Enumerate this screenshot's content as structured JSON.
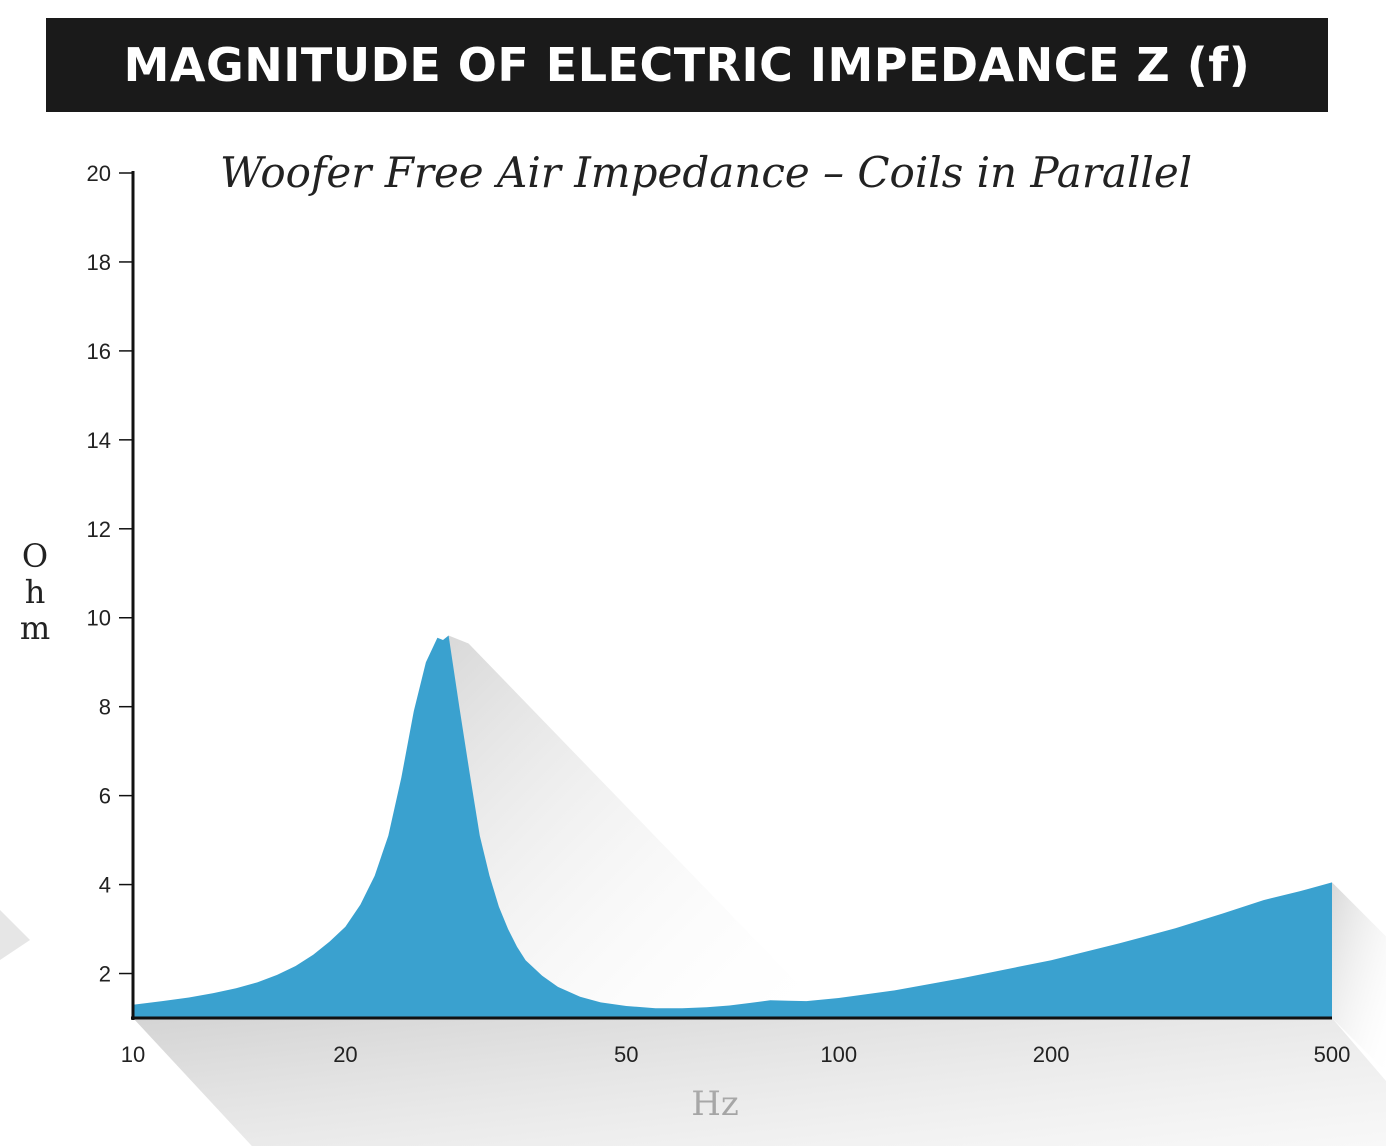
{
  "banner": {
    "title": "MAGNITUDE OF ELECTRIC IMPEDANCE Z (f)"
  },
  "colors": {
    "banner_bg": "#1a1a1a",
    "fill": "#3aa1cf",
    "shadow": "#d9d9d9"
  },
  "chart_data": {
    "type": "area",
    "title": "Woofer Free Air Impedance – Coils in Parallel",
    "xlabel": "Hz",
    "ylabel": "Ohm",
    "ylabel_letters": [
      "O",
      "h",
      "m"
    ],
    "x_scale": "log",
    "xlim": [
      10,
      500
    ],
    "ylim": [
      1,
      20
    ],
    "x_ticks": [
      10,
      20,
      50,
      100,
      200,
      500
    ],
    "y_ticks": [
      2,
      4,
      6,
      8,
      10,
      12,
      14,
      16,
      18,
      20
    ],
    "grid": false,
    "series": [
      {
        "x": [
          10,
          11,
          12,
          13,
          14,
          15,
          16,
          17,
          18,
          19,
          20,
          21,
          22,
          23,
          24,
          25,
          26,
          27,
          27.5,
          28,
          29,
          30,
          31,
          32,
          33,
          34,
          35,
          36,
          38,
          40,
          43,
          46,
          50,
          55,
          60,
          65,
          70,
          75,
          80,
          85,
          90,
          100,
          120,
          150,
          200,
          250,
          300,
          350,
          400,
          450,
          500
        ],
        "y": [
          1.3,
          1.38,
          1.46,
          1.56,
          1.67,
          1.8,
          1.97,
          2.17,
          2.42,
          2.72,
          3.05,
          3.55,
          4.2,
          5.1,
          6.4,
          7.9,
          9.0,
          9.55,
          9.5,
          9.6,
          8.0,
          6.5,
          5.1,
          4.2,
          3.5,
          3.0,
          2.6,
          2.3,
          1.95,
          1.7,
          1.48,
          1.35,
          1.27,
          1.22,
          1.22,
          1.24,
          1.28,
          1.34,
          1.4,
          1.39,
          1.38,
          1.45,
          1.62,
          1.9,
          2.3,
          2.68,
          3.02,
          3.35,
          3.65,
          3.85,
          4.05
        ]
      }
    ]
  }
}
